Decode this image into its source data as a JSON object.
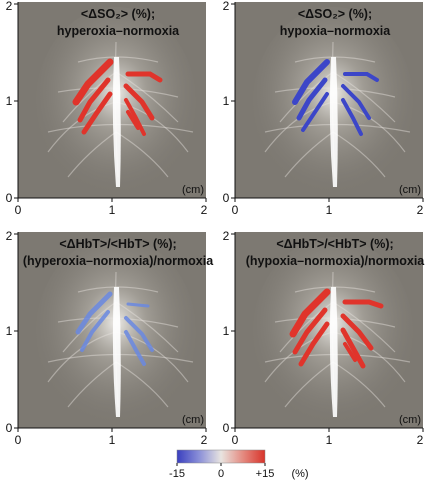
{
  "panels": [
    {
      "title_line1": "<ΔSO₂> (%);",
      "title_line2": "hyperoxia–normoxia",
      "overlay": "red"
    },
    {
      "title_line1": "<ΔSO₂> (%);",
      "title_line2": "hypoxia–normoxia",
      "overlay": "blue"
    },
    {
      "title_line1": "<ΔHbT>/<HbT> (%);",
      "title_line2": "(hyperoxia–normoxia)/normoxia",
      "overlay": "blue-light"
    },
    {
      "title_line1": "<ΔHbT>/<HbT> (%);",
      "title_line2": "(hypoxia–normoxia)/normoxia",
      "overlay": "red"
    }
  ],
  "axis": {
    "y_ticks": [
      "0",
      "1",
      "2"
    ],
    "x_ticks": [
      "0",
      "1",
      "2"
    ],
    "unit_label": "(cm)"
  },
  "colorbar": {
    "min_label": "-15",
    "mid_label": "0",
    "max_label": "+15",
    "unit": "(%)",
    "colors": [
      "#3a3fbf",
      "#8a8fd8",
      "#e8e4e0",
      "#e48a80",
      "#d8332a"
    ]
  },
  "colors": {
    "panel_bg": "#7d7972",
    "red_overlay": "#e0342b",
    "blue_overlay": "#3c46c8",
    "light_blue_overlay": "#6a88e0"
  }
}
